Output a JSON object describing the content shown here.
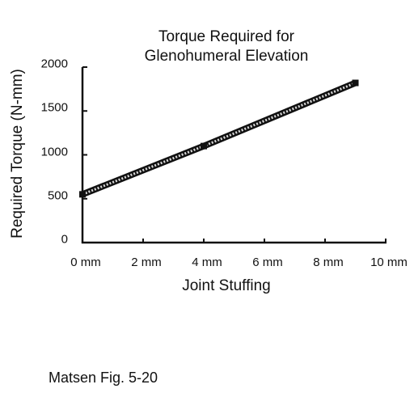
{
  "chart_data": {
    "type": "line",
    "title_line1": "Torque Required for",
    "title_line2": "Glenohumeral Elevation",
    "xlabel": "Joint Stuffing",
    "ylabel": "Required Torque (N-mm)",
    "x_ticks": [
      "0 mm",
      "2 mm",
      "4 mm",
      "6 mm",
      "8 mm",
      "10 mm"
    ],
    "y_ticks": [
      "0",
      "500",
      "1000",
      "1500",
      "2000"
    ],
    "xlim": [
      0,
      10
    ],
    "ylim": [
      0,
      2000
    ],
    "grid": false,
    "series": [
      {
        "x": [
          0,
          4,
          9
        ],
        "y": [
          550,
          1100,
          1820
        ]
      }
    ]
  },
  "caption": "Matsen Fig. 5-20"
}
